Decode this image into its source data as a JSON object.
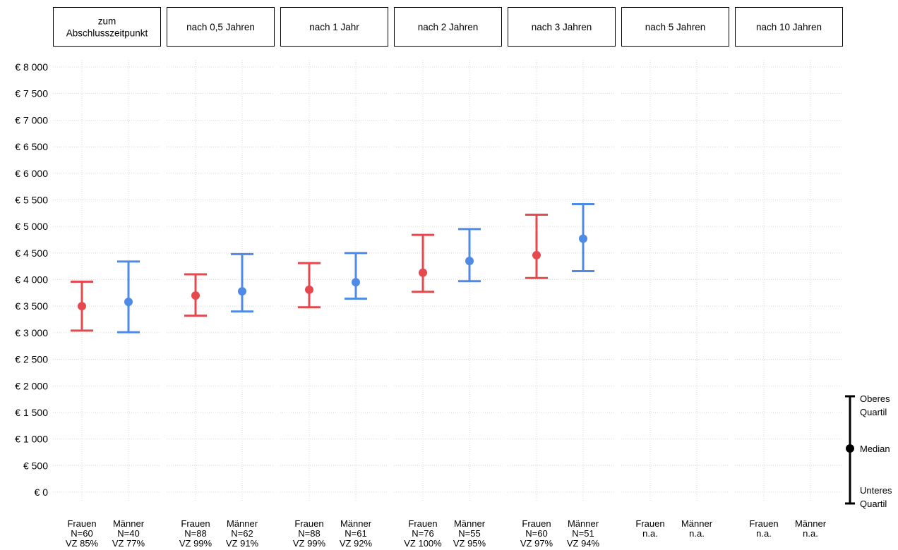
{
  "chart_data": {
    "type": "errorbar",
    "y_ticks": [
      "€ 0",
      "€ 500",
      "€ 1 000",
      "€ 1 500",
      "€ 2 000",
      "€ 2 500",
      "€ 3 000",
      "€ 3 500",
      "€ 4 000",
      "€ 4 500",
      "€ 5 000",
      "€ 5 500",
      "€ 6 000",
      "€ 6 500",
      "€ 7 000",
      "€ 7 500",
      "€ 8 000"
    ],
    "ylim": [
      0,
      8000
    ],
    "grid": true,
    "colors": {
      "Frauen": "#e5484d",
      "Männer": "#4f8be6"
    },
    "panels": [
      {
        "label": [
          "zum",
          "Abschlusszeitpunkt"
        ],
        "groups": [
          {
            "name": "Frauen",
            "n": "N=60",
            "vz": "VZ 85%",
            "median": 3500,
            "q1": 3040,
            "q3": 3960
          },
          {
            "name": "Männer",
            "n": "N=40",
            "vz": "VZ 77%",
            "median": 3580,
            "q1": 3010,
            "q3": 4340
          }
        ]
      },
      {
        "label": [
          "nach 0,5 Jahren"
        ],
        "groups": [
          {
            "name": "Frauen",
            "n": "N=88",
            "vz": "VZ 99%",
            "median": 3700,
            "q1": 3320,
            "q3": 4100
          },
          {
            "name": "Männer",
            "n": "N=62",
            "vz": "VZ 91%",
            "median": 3780,
            "q1": 3400,
            "q3": 4480
          }
        ]
      },
      {
        "label": [
          "nach 1 Jahr"
        ],
        "groups": [
          {
            "name": "Frauen",
            "n": "N=88",
            "vz": "VZ 99%",
            "median": 3810,
            "q1": 3480,
            "q3": 4310
          },
          {
            "name": "Männer",
            "n": "N=61",
            "vz": "VZ 92%",
            "median": 3950,
            "q1": 3640,
            "q3": 4500
          }
        ]
      },
      {
        "label": [
          "nach 2 Jahren"
        ],
        "groups": [
          {
            "name": "Frauen",
            "n": "N=76",
            "vz": "VZ 100%",
            "median": 4130,
            "q1": 3770,
            "q3": 4840
          },
          {
            "name": "Männer",
            "n": "N=55",
            "vz": "VZ 95%",
            "median": 4350,
            "q1": 3970,
            "q3": 4950
          }
        ]
      },
      {
        "label": [
          "nach 3 Jahren"
        ],
        "groups": [
          {
            "name": "Frauen",
            "n": "N=60",
            "vz": "VZ 97%",
            "median": 4460,
            "q1": 4030,
            "q3": 5220
          },
          {
            "name": "Männer",
            "n": "N=51",
            "vz": "VZ 94%",
            "median": 4770,
            "q1": 4160,
            "q3": 5420
          }
        ]
      },
      {
        "label": [
          "nach 5 Jahren"
        ],
        "groups": [
          {
            "name": "Frauen",
            "n": "n.a.",
            "vz": "",
            "median": null,
            "q1": null,
            "q3": null
          },
          {
            "name": "Männer",
            "n": "n.a.",
            "vz": "",
            "median": null,
            "q1": null,
            "q3": null
          }
        ]
      },
      {
        "label": [
          "nach 10 Jahren"
        ],
        "groups": [
          {
            "name": "Frauen",
            "n": "n.a.",
            "vz": "",
            "median": null,
            "q1": null,
            "q3": null
          },
          {
            "name": "Männer",
            "n": "n.a.",
            "vz": "",
            "median": null,
            "q1": null,
            "q3": null
          }
        ]
      }
    ],
    "legend": {
      "upper": [
        "Oberes",
        "Quartil"
      ],
      "median": "Median",
      "lower": [
        "Unteres",
        "Quartil"
      ]
    }
  }
}
